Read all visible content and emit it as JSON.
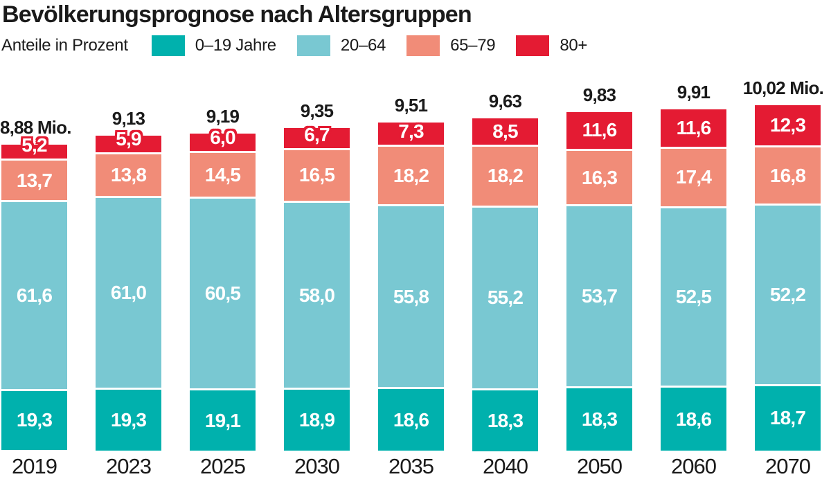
{
  "title": "Bevölkerungsprognose nach Altersgruppen",
  "legend": {
    "label": "Anteile in Prozent",
    "items": [
      {
        "label": "0–19 Jahre",
        "color": "#00b1ad"
      },
      {
        "label": "20–64",
        "color": "#79c8d2"
      },
      {
        "label": "65–79",
        "color": "#f18c78"
      },
      {
        "label": "80+",
        "color": "#e41b33"
      }
    ]
  },
  "chart_data": {
    "type": "bar",
    "stacked": true,
    "title": "Bevölkerungsprognose nach Altersgruppen",
    "subtitle": "Anteile in Prozent",
    "value_unit": "percent",
    "bar_height_unit": "Mio. Einwohner",
    "categories": [
      "2019",
      "2023",
      "2025",
      "2030",
      "2035",
      "2040",
      "2050",
      "2060",
      "2070"
    ],
    "totals_mio": [
      8.88,
      9.13,
      9.19,
      9.35,
      9.51,
      9.63,
      9.83,
      9.91,
      10.02
    ],
    "totals_labels": [
      "8,88 Mio.",
      "9,13",
      "9,19",
      "9,35",
      "9,51",
      "9,63",
      "9,83",
      "9,91",
      "10,02 Mio."
    ],
    "series": [
      {
        "key": "0-19",
        "name": "0–19 Jahre",
        "color": "#00b1ad",
        "values": [
          19.3,
          19.3,
          19.1,
          18.9,
          18.6,
          18.3,
          18.3,
          18.6,
          18.7
        ]
      },
      {
        "key": "20-64",
        "name": "20–64",
        "color": "#79c8d2",
        "values": [
          61.6,
          61.0,
          60.5,
          58.0,
          55.8,
          55.2,
          53.7,
          52.5,
          52.2
        ]
      },
      {
        "key": "65-79",
        "name": "65–79",
        "color": "#f18c78",
        "values": [
          13.7,
          13.8,
          14.5,
          16.5,
          18.2,
          18.2,
          16.3,
          17.4,
          16.8
        ]
      },
      {
        "key": "80plus",
        "name": "80+",
        "color": "#e41b33",
        "values": [
          5.2,
          5.9,
          6.0,
          6.7,
          7.3,
          8.5,
          11.6,
          11.6,
          12.3
        ]
      }
    ],
    "legend_position": "top",
    "grid": false,
    "outlined_red_label_threshold_pct": 8
  }
}
